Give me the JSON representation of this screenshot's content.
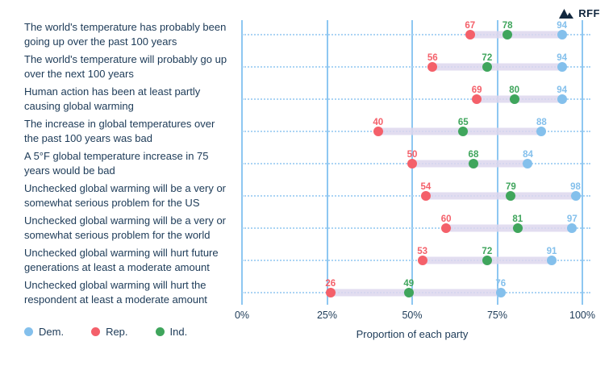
{
  "logo": {
    "text": "RFF"
  },
  "colors": {
    "dem": "#84c0ec",
    "rep": "#f4606a",
    "ind": "#3fa55c",
    "band": "#ddd7ed",
    "gridline": "#8ec7f1",
    "dotted_line": "#abd4f4",
    "text": "#1c3a57",
    "logo": "#12283f"
  },
  "legend": [
    {
      "label": "Dem.",
      "color": "#84c0ec"
    },
    {
      "label": "Rep.",
      "color": "#f4606a"
    },
    {
      "label": "Ind.",
      "color": "#3fa55c"
    }
  ],
  "chart_data": {
    "type": "scatter",
    "subtype": "dumbbell-dot-plot",
    "xlabel": "Proportion of each party",
    "xlim": [
      0,
      100
    ],
    "x_ticks": [
      "0%",
      "25%",
      "50%",
      "75%",
      "100%"
    ],
    "x_tick_values": [
      0,
      25,
      50,
      75,
      100
    ],
    "grid": "vertical",
    "legend_position": "bottom-left",
    "series_names": [
      "Dem.",
      "Rep.",
      "Ind."
    ],
    "rows": [
      {
        "label": "The world's temperature has probably been going up over the past 100 years",
        "rep": 67,
        "ind": 78,
        "dem": 94
      },
      {
        "label": "The world's temperature will probably go up over the next 100 years",
        "rep": 56,
        "ind": 72,
        "dem": 94
      },
      {
        "label": "Human action has been at least partly causing global warming",
        "rep": 69,
        "ind": 80,
        "dem": 94
      },
      {
        "label": "The increase in global temperatures over the past 100 years was bad",
        "rep": 40,
        "ind": 65,
        "dem": 88
      },
      {
        "label": "A 5°F global temperature increase in 75 years would be bad",
        "rep": 50,
        "ind": 68,
        "dem": 84
      },
      {
        "label": "Unchecked global warming will be a very or somewhat serious problem for the US",
        "rep": 54,
        "ind": 79,
        "dem": 98
      },
      {
        "label": "Unchecked global warming will be a very or somewhat serious problem for the world",
        "rep": 60,
        "ind": 81,
        "dem": 97
      },
      {
        "label": "Unchecked global warming will hurt future generations at least a moderate amount",
        "rep": 53,
        "ind": 72,
        "dem": 91
      },
      {
        "label": "Unchecked global warming will hurt the respondent at least a moderate amount",
        "rep": 26,
        "ind": 49,
        "dem": 76
      }
    ]
  }
}
